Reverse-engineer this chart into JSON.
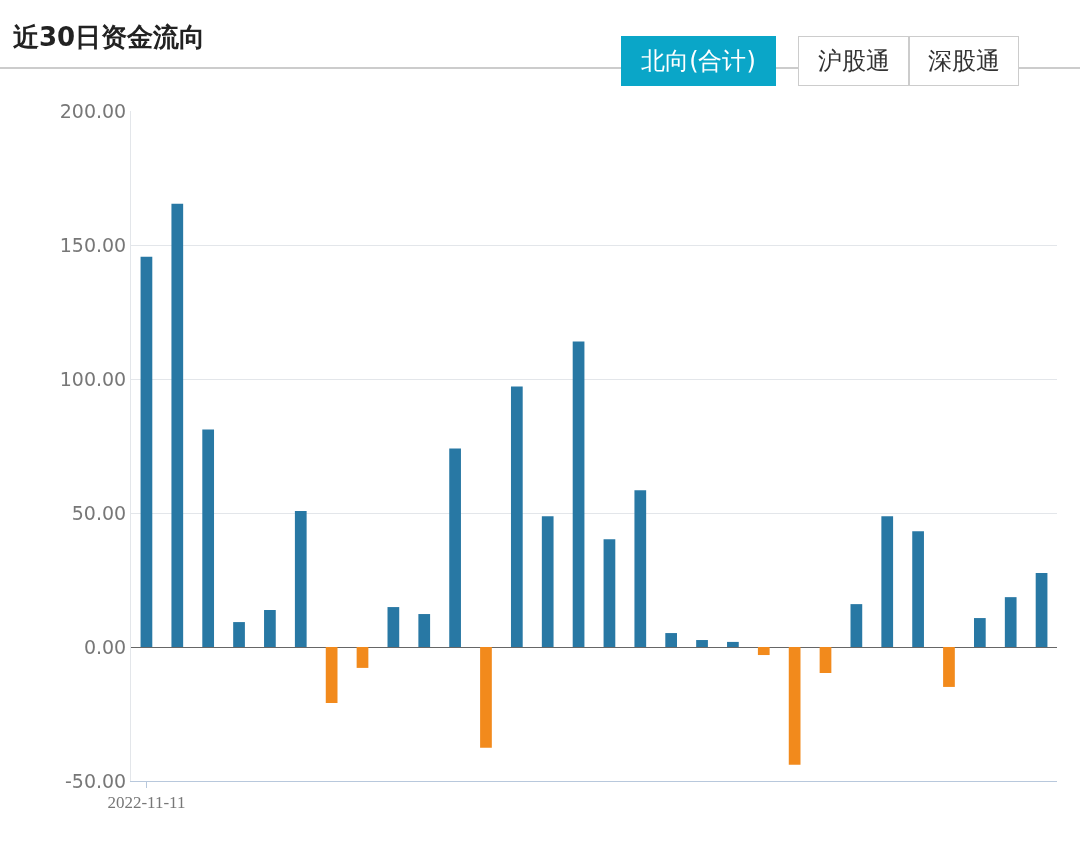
{
  "chart_data": {
    "type": "bar",
    "title": "近30日资金流向",
    "categories": [
      "2022-11-11",
      null,
      null,
      null,
      null,
      null,
      null,
      null,
      null,
      null,
      null,
      null,
      null,
      null,
      null,
      null,
      null,
      null,
      null,
      null,
      null,
      null,
      null,
      null,
      null,
      null,
      null,
      null,
      null,
      null
    ],
    "values": [
      145.6,
      165.4,
      81.2,
      9.3,
      13.8,
      50.7,
      -20.9,
      -7.8,
      14.9,
      12.3,
      74.1,
      -37.6,
      97.2,
      48.8,
      114.0,
      40.2,
      58.5,
      5.2,
      2.6,
      1.9,
      -3.0,
      -43.9,
      -9.7,
      16.0,
      48.8,
      43.2,
      -14.9,
      10.8,
      18.6,
      27.6
    ],
    "colors": [
      "#2878a4",
      "#2878a4",
      "#2878a4",
      "#2878a4",
      "#2878a4",
      "#2878a4",
      "#f28a1c",
      "#f28a1c",
      "#2878a4",
      "#2878a4",
      "#2878a4",
      "#f28a1c",
      "#2878a4",
      "#2878a4",
      "#2878a4",
      "#2878a4",
      "#2878a4",
      "#2878a4",
      "#2878a4",
      "#2878a4",
      "#f28a1c",
      "#f28a1c",
      "#f28a1c",
      "#2878a4",
      "#2878a4",
      "#2878a4",
      "#f28a1c",
      "#2878a4",
      "#2878a4",
      "#2878a4"
    ],
    "ylim": [
      -50,
      200
    ],
    "yticks": [
      {
        "value": -50,
        "label": "-50.00"
      },
      {
        "value": 0,
        "label": "0.00"
      },
      {
        "value": 50,
        "label": "50.00"
      },
      {
        "value": 100,
        "label": "100.00"
      },
      {
        "value": 150,
        "label": "150.00"
      },
      {
        "value": 200,
        "label": "200.00"
      }
    ],
    "grid": "y",
    "annotations": [
      "北向(合计)",
      "沪股通",
      "深股通"
    ]
  }
}
